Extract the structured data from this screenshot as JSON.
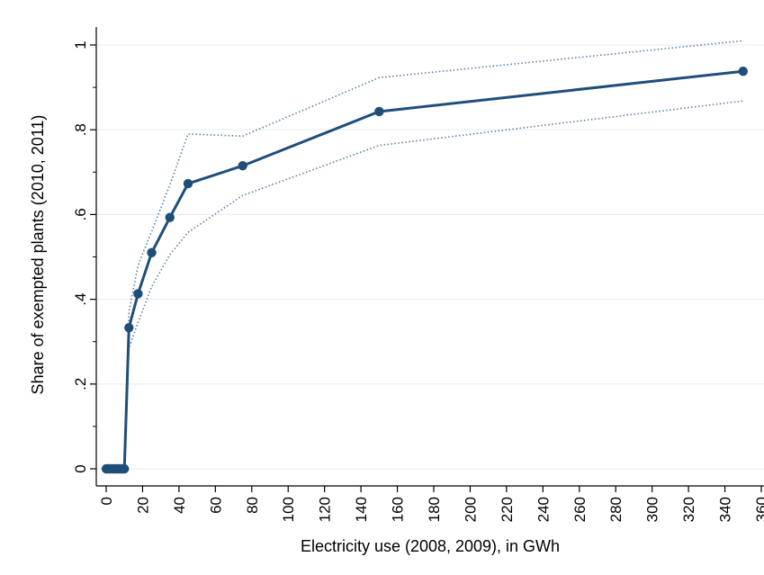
{
  "chart_data": {
    "type": "line",
    "title": "",
    "xlabel": "Electricity use (2008, 2009), in GWh",
    "ylabel": "Share of exempted plants (2010, 2011)",
    "xlim": [
      0,
      360
    ],
    "ylim": [
      0,
      1
    ],
    "x_ticks": [
      0,
      20,
      40,
      60,
      80,
      100,
      120,
      140,
      160,
      180,
      200,
      220,
      240,
      260,
      280,
      300,
      320,
      340,
      360
    ],
    "x_tick_labels": [
      "0",
      "20",
      "40",
      "60",
      "80",
      "100",
      "120",
      "140",
      "160",
      "180",
      "200",
      "220",
      "240",
      "260",
      "280",
      "300",
      "320",
      "340",
      "360"
    ],
    "y_ticks": [
      0,
      0.2,
      0.4,
      0.6,
      0.8,
      1
    ],
    "y_tick_labels": [
      "0",
      ".2",
      ".4",
      ".6",
      ".8",
      "1"
    ],
    "grid": true,
    "colors": {
      "line": "#1f4e79",
      "ci": "#5b7fa6",
      "grid": "#e9eef3"
    },
    "series": [
      {
        "style": "solid-markers",
        "x": [
          0,
          1,
          2,
          3,
          4,
          5,
          6,
          7,
          8,
          9,
          10,
          12.5,
          17.5,
          25,
          35,
          45,
          75,
          150,
          350
        ],
        "y": [
          0,
          0,
          0,
          0,
          0,
          0,
          0,
          0,
          0,
          0,
          0,
          0.333,
          0.413,
          0.51,
          0.593,
          0.673,
          0.715,
          0.843,
          0.938
        ]
      },
      {
        "style": "dotted-upper-ci",
        "x": [
          10,
          12.5,
          17.5,
          25,
          35,
          45,
          75,
          150,
          350
        ],
        "y": [
          0,
          0.37,
          0.48,
          0.56,
          0.67,
          0.79,
          0.785,
          0.923,
          1.01
        ]
      },
      {
        "style": "dotted-lower-ci",
        "x": [
          10,
          12.5,
          17.5,
          25,
          35,
          45,
          75,
          150,
          350
        ],
        "y": [
          0,
          0.285,
          0.345,
          0.43,
          0.505,
          0.558,
          0.645,
          0.763,
          0.868
        ]
      }
    ]
  }
}
